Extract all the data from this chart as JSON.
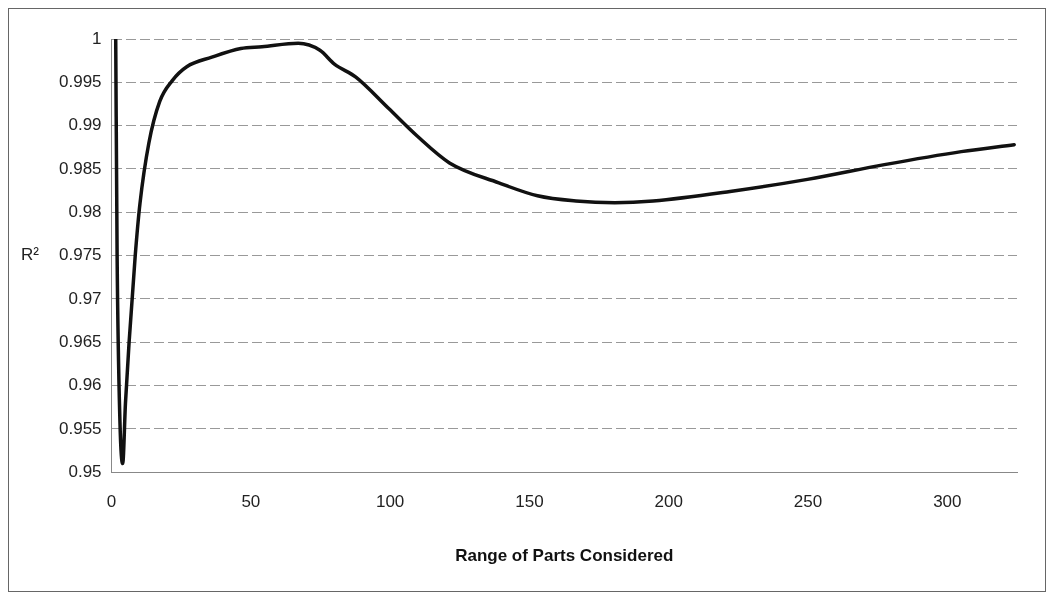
{
  "chart_data": {
    "type": "line",
    "xlabel": "Range of Parts Considered",
    "ylabel": "R²",
    "x": [
      1.5,
      2,
      3,
      4,
      5,
      6.3,
      8.5,
      10.2,
      13.4,
      17.3,
      21.8,
      27,
      36,
      46.4,
      54,
      67,
      74.8,
      80,
      87.7,
      99.4,
      109.7,
      121.3,
      139,
      152.9,
      166.7,
      180.6,
      194.4,
      222,
      249.8,
      277.4,
      305,
      324
    ],
    "series": [
      {
        "color": "#111111",
        "values": [
          1,
          0.975,
          0.956,
          0.951,
          0.958,
          0.965,
          0.975,
          0.981,
          0.988,
          0.9928,
          0.9952,
          0.9968,
          0.9979,
          0.9989,
          0.9991,
          0.9995,
          0.9987,
          0.9971,
          0.9956,
          0.992,
          0.9888,
          0.9857,
          0.9834,
          0.9819,
          0.9813,
          0.9811,
          0.9813,
          0.9824,
          0.9838,
          0.9855,
          0.987,
          0.9878
        ]
      }
    ],
    "xlim": [
      0,
      325
    ],
    "xticks": [
      0,
      50,
      100,
      150,
      200,
      250,
      300
    ],
    "ylim": [
      0.95,
      1
    ],
    "yticks": [
      0.95,
      0.955,
      0.96,
      0.965,
      0.97,
      0.975,
      0.98,
      0.985,
      0.99,
      0.995,
      1
    ],
    "grid": "y",
    "legend": false,
    "marker": "none",
    "line_style": "solid"
  }
}
